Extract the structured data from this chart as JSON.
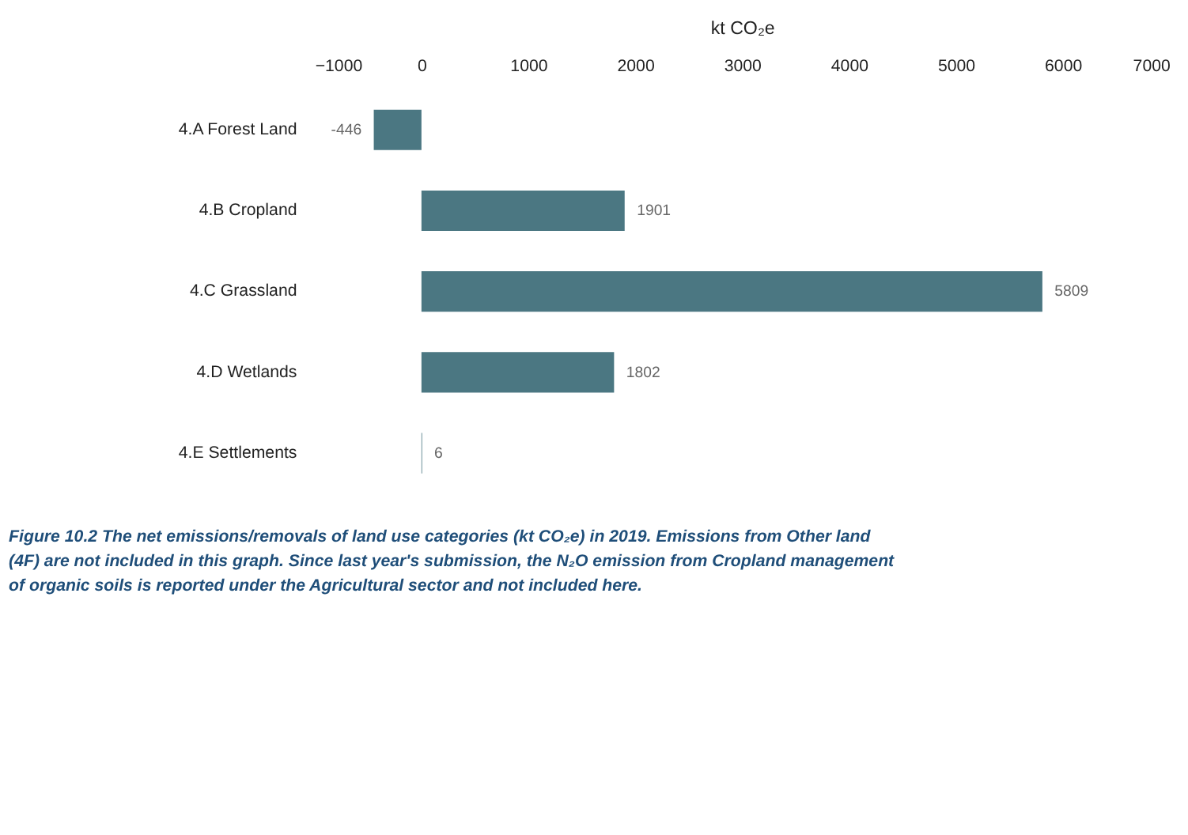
{
  "chart_data": {
    "type": "bar",
    "orientation": "horizontal",
    "xlabel": "kt CO₂e",
    "categories": [
      "4.A Forest Land",
      "4.B Cropland",
      "4.C Grassland",
      "4.D Wetlands",
      "4.E Settlements"
    ],
    "values": [
      -446,
      1901,
      5809,
      1802,
      6
    ],
    "color": "#4b7782",
    "xlim": [
      -1000,
      7000
    ],
    "xticks": [
      -1000,
      0,
      1000,
      2000,
      3000,
      4000,
      5000,
      6000,
      7000
    ],
    "grid": false,
    "data_labels": true,
    "annotations": [
      "Figure 10.2 The net emissions/removals of land use categories (kt CO₂e) in 2019. Emissions from Other land (4F) are not included in this graph. Since last year's submission, the N₂O emission from Cropland management of organic soils is reported under the Agricultural sector and not included here."
    ]
  }
}
